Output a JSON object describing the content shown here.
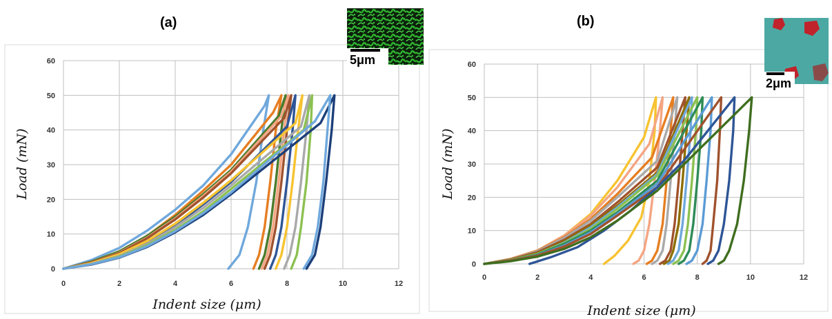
{
  "panels": {
    "a": {
      "label": "(a)",
      "scale_bar": "5μm"
    },
    "b": {
      "label": "(b)",
      "scale_bar": "2μm"
    }
  },
  "chart_data": [
    {
      "type": "line",
      "panel": "(a)",
      "xlabel": "Indent size (μm)",
      "ylabel": "Load (mN)",
      "xlim": [
        0,
        12
      ],
      "ylim": [
        0,
        60
      ],
      "xticks": [
        "0",
        "2",
        "4",
        "6",
        "8",
        "10",
        "12"
      ],
      "yticks": [
        "0",
        "10",
        "20",
        "30",
        "40",
        "50",
        "60"
      ],
      "grid": true,
      "series": [
        {
          "color": "#6fa8dc",
          "x": [
            0,
            1,
            2,
            3,
            4,
            5,
            6,
            7.2,
            7.35,
            7.15,
            6.9,
            6.6,
            6.3,
            5.9
          ],
          "y": [
            0,
            2.5,
            6,
            11,
            17,
            24,
            33,
            47,
            50,
            40,
            25,
            12,
            4,
            0
          ]
        },
        {
          "color": "#e67e22",
          "x": [
            0,
            1,
            2,
            3,
            4,
            5,
            6,
            7.5,
            7.8,
            7.6,
            7.4,
            7.2,
            7.0,
            6.8
          ],
          "y": [
            0,
            2,
            5,
            9.5,
            15.5,
            22.5,
            30,
            45,
            50,
            40,
            25,
            12,
            4,
            0
          ]
        },
        {
          "color": "#4a7b2c",
          "x": [
            0,
            1,
            2,
            3,
            4,
            5,
            6,
            7.7,
            7.95,
            7.8,
            7.6,
            7.4,
            7.2,
            7.0
          ],
          "y": [
            0,
            2,
            5,
            9.5,
            15,
            21.5,
            28.5,
            44,
            50,
            40,
            25,
            12,
            4,
            0
          ]
        },
        {
          "color": "#f4a582",
          "x": [
            0,
            1,
            2,
            3,
            4,
            5,
            6,
            7.8,
            8.05,
            7.9,
            7.7,
            7.5,
            7.3,
            7.1
          ],
          "y": [
            0,
            1.8,
            4.6,
            9,
            14.5,
            21,
            28,
            44,
            50,
            40,
            25,
            12,
            4,
            0
          ]
        },
        {
          "color": "#a0522d",
          "x": [
            0,
            1,
            2,
            3,
            4,
            5,
            6,
            7.9,
            8.15,
            8.0,
            7.8,
            7.6,
            7.4,
            7.2
          ],
          "y": [
            0,
            1.8,
            4.5,
            8.8,
            14.2,
            20.5,
            27.5,
            43.5,
            50,
            40,
            25,
            12,
            4,
            0
          ]
        },
        {
          "color": "#2e5596",
          "x": [
            0,
            1,
            2,
            3,
            4,
            5,
            6,
            8.0,
            8.3,
            8.2,
            8.0,
            7.8,
            7.6,
            7.4
          ],
          "y": [
            0,
            1.5,
            4,
            7.5,
            12.5,
            18.5,
            25,
            41,
            50,
            40,
            25,
            12,
            4,
            0
          ]
        },
        {
          "color": "#f7c331",
          "x": [
            0,
            1,
            2,
            3,
            4,
            5,
            6,
            8.3,
            8.55,
            8.4,
            8.2,
            8.0,
            7.8,
            7.6
          ],
          "y": [
            0,
            1.6,
            4.2,
            8,
            13,
            19,
            25.5,
            42,
            50,
            40,
            25,
            12,
            4,
            0
          ]
        },
        {
          "color": "#a9a9a9",
          "x": [
            0,
            1,
            2,
            3,
            4,
            5,
            6,
            8.5,
            8.8,
            8.7,
            8.5,
            8.3,
            8.1,
            7.9
          ],
          "y": [
            0,
            1.4,
            3.7,
            7.2,
            12,
            17.5,
            24,
            41,
            50,
            40,
            25,
            12,
            4,
            0
          ]
        },
        {
          "color": "#8cc152",
          "x": [
            0,
            1,
            2,
            3,
            4,
            5,
            6,
            8.6,
            8.9,
            8.85,
            8.7,
            8.5,
            8.35,
            8.15
          ],
          "y": [
            0,
            1.3,
            3.5,
            6.8,
            11.2,
            16.5,
            23,
            40,
            50,
            40,
            25,
            12,
            4,
            0
          ]
        },
        {
          "color": "#1c3f7a",
          "x": [
            0,
            1,
            2,
            3,
            4,
            5,
            6,
            9.2,
            9.7,
            9.6,
            9.4,
            9.2,
            9.0,
            8.7
          ],
          "y": [
            0,
            1.2,
            3.2,
            6.3,
            10.5,
            15.5,
            21.5,
            42,
            50,
            40,
            25,
            12,
            4,
            0
          ]
        },
        {
          "color": "#6fa8dc",
          "x": [
            0,
            1,
            2,
            3,
            4,
            5,
            6,
            9.0,
            9.55,
            9.45,
            9.3,
            9.1,
            8.9,
            8.6
          ],
          "y": [
            0,
            1.3,
            3.3,
            6.5,
            10.8,
            16,
            22,
            42.5,
            50,
            40,
            25,
            12,
            4,
            0
          ]
        }
      ]
    },
    {
      "type": "line",
      "panel": "(b)",
      "xlabel": "Indent size (μm)",
      "ylabel": "Load (mN)",
      "xlim": [
        0,
        12
      ],
      "ylim": [
        0,
        60
      ],
      "xticks": [
        "0",
        "2",
        "4",
        "6",
        "8",
        "10",
        "12"
      ],
      "yticks": [
        "0",
        "10",
        "20",
        "30",
        "40",
        "50",
        "60"
      ],
      "grid": true,
      "series": [
        {
          "color": "#f7c331",
          "x": [
            0,
            1,
            2,
            3,
            4,
            5,
            6.0,
            6.45,
            6.4,
            6.2,
            5.9,
            5.4,
            4.9,
            4.5
          ],
          "y": [
            0,
            1.5,
            4,
            8.5,
            15,
            25,
            38,
            50,
            40,
            25,
            14,
            7,
            2.5,
            0
          ]
        },
        {
          "color": "#f4a582",
          "x": [
            0,
            1,
            2,
            3,
            4,
            5,
            6.2,
            6.7,
            6.6,
            6.4,
            6.2,
            6.0,
            5.8,
            5.6
          ],
          "y": [
            0,
            1.5,
            4,
            8.5,
            14.5,
            23,
            36,
            50,
            40,
            25,
            12,
            4,
            1,
            0
          ]
        },
        {
          "color": "#e67e22",
          "x": [
            0,
            1,
            2,
            3,
            4,
            5,
            6.3,
            7.1,
            7.0,
            6.85,
            6.7,
            6.5,
            6.3,
            6.1
          ],
          "y": [
            0,
            1.5,
            4,
            8,
            13.5,
            21,
            32,
            50,
            40,
            25,
            12,
            4,
            1,
            0
          ]
        },
        {
          "color": "#a9a9a9",
          "x": [
            0,
            1,
            2,
            3,
            4,
            5,
            6.5,
            7.25,
            7.15,
            7.0,
            6.85,
            6.7,
            6.5,
            6.3
          ],
          "y": [
            0,
            1.4,
            3.8,
            7.8,
            13,
            20,
            31,
            50,
            40,
            25,
            12,
            4,
            1,
            0
          ]
        },
        {
          "color": "#a0522d",
          "x": [
            0,
            1,
            2,
            3,
            4,
            5,
            6.5,
            7.55,
            7.45,
            7.3,
            7.15,
            7.0,
            6.8,
            6.6
          ],
          "y": [
            0,
            1.3,
            3.5,
            7.2,
            12,
            18.5,
            29,
            50,
            40,
            25,
            12,
            4,
            1,
            0
          ]
        },
        {
          "color": "#8d6e00",
          "x": [
            0,
            1,
            2,
            3,
            4,
            5,
            6.5,
            7.7,
            7.6,
            7.45,
            7.3,
            7.1,
            6.95,
            6.75
          ],
          "y": [
            0,
            1.2,
            3.2,
            6.8,
            11.5,
            17.5,
            27.5,
            50,
            40,
            25,
            12,
            4,
            1,
            0
          ]
        },
        {
          "color": "#6fa8dc",
          "x": [
            0,
            1,
            2,
            3,
            4,
            5,
            6.5,
            7.8,
            7.75,
            7.6,
            7.45,
            7.3,
            7.1,
            6.9
          ],
          "y": [
            0,
            1.1,
            3,
            6.4,
            11,
            17,
            27,
            50,
            40,
            25,
            12,
            4,
            1,
            0
          ]
        },
        {
          "color": "#8cc152",
          "x": [
            0,
            1,
            2,
            3,
            4,
            5,
            6.5,
            8.0,
            7.95,
            7.8,
            7.65,
            7.5,
            7.3,
            7.1
          ],
          "y": [
            0,
            1.1,
            3,
            6.2,
            10.5,
            16.5,
            26.5,
            50,
            40,
            25,
            12,
            4,
            1,
            0
          ]
        },
        {
          "color": "#2e8b57",
          "x": [
            0,
            1,
            2,
            3,
            4,
            5,
            6.5,
            8.2,
            8.15,
            8.0,
            7.85,
            7.7,
            7.5,
            7.3
          ],
          "y": [
            0,
            1,
            2.8,
            6,
            10,
            15.5,
            25,
            50,
            40,
            25,
            12,
            4,
            1,
            0
          ]
        },
        {
          "color": "#5b9bd5",
          "x": [
            0,
            1,
            2,
            3,
            4,
            5,
            6.5,
            8.55,
            8.5,
            8.35,
            8.2,
            8.0,
            7.8,
            7.6
          ],
          "y": [
            0,
            1,
            2.6,
            5.5,
            9.5,
            15,
            24,
            50,
            40,
            25,
            12,
            4,
            1,
            0
          ]
        },
        {
          "color": "#a0522d",
          "x": [
            0,
            1,
            2,
            3,
            4,
            5,
            6.5,
            8.9,
            8.85,
            8.75,
            8.6,
            8.5,
            8.35,
            8.2
          ],
          "y": [
            0,
            1,
            2.5,
            5.2,
            9,
            14.5,
            23,
            50,
            40,
            25,
            12,
            4,
            1,
            0
          ]
        },
        {
          "color": "#2e5596",
          "x": [
            1.7,
            2.5,
            3.5,
            4.5,
            5.5,
            6.5,
            7.5,
            9.4,
            9.35,
            9.2,
            9.0,
            8.8,
            8.6,
            8.4
          ],
          "y": [
            0,
            2,
            5,
            10,
            16,
            23,
            31,
            50,
            40,
            25,
            12,
            4,
            1,
            0
          ]
        },
        {
          "color": "#3f6e1f",
          "x": [
            0,
            1,
            2,
            3,
            4,
            5,
            6.5,
            10.05,
            9.95,
            9.75,
            9.5,
            9.2,
            9.0,
            8.8
          ],
          "y": [
            0,
            0.8,
            2.2,
            4.5,
            8,
            13,
            22,
            50,
            40,
            25,
            12,
            4,
            1,
            0
          ]
        }
      ]
    }
  ]
}
